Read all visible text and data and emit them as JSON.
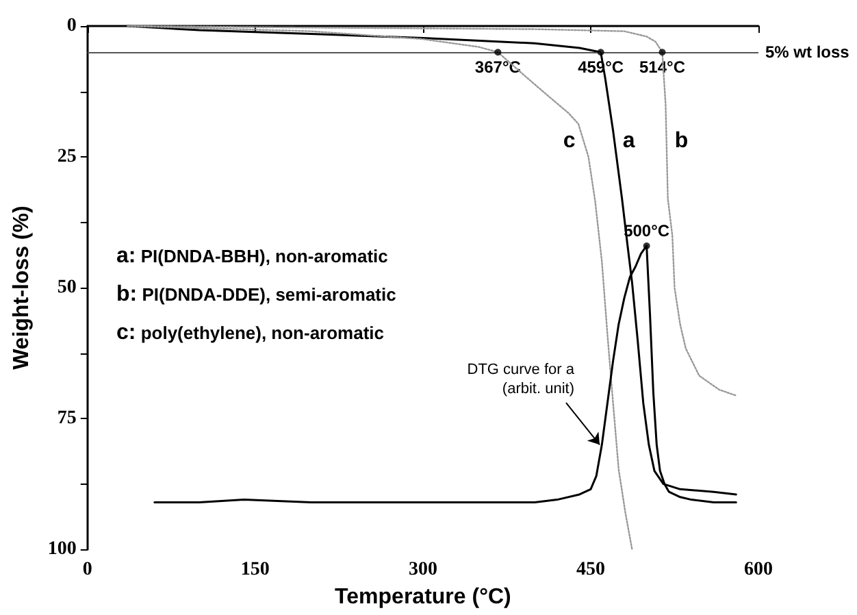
{
  "chart_data": {
    "type": "line",
    "xlabel": "Temperature (°C)",
    "ylabel": "Weight-loss (%)",
    "xlim": [
      0,
      600
    ],
    "xticks": [
      0,
      150,
      300,
      450,
      600
    ],
    "ylim": [
      100,
      0
    ],
    "yticks": [
      0,
      {
        "value": 12.5,
        "label": null
      },
      25,
      {
        "value": 37.5,
        "label": null
      },
      50,
      {
        "value": 62.5,
        "label": null
      },
      75,
      {
        "value": 87.5,
        "label": null
      },
      100
    ],
    "grid": false,
    "marker": "none",
    "series": [
      {
        "name": "a",
        "color": "#000000",
        "line_style": "solid",
        "x": [
          36,
          100,
          200,
          300,
          400,
          440,
          459,
          463,
          470,
          478,
          483,
          487,
          492,
          497,
          502,
          507,
          515,
          530,
          560,
          580
        ],
        "values": [
          0,
          0.8,
          1.5,
          2.3,
          3.3,
          4.2,
          5,
          10,
          20,
          33,
          42,
          49,
          60,
          72,
          80,
          85,
          87.5,
          88.5,
          89,
          89.5
        ]
      },
      {
        "name": "b",
        "color": "#999999",
        "line_style": "dotted",
        "x": [
          36,
          200,
          400,
          480,
          500,
          508,
          514,
          517,
          519,
          523,
          525,
          530,
          535,
          547,
          565,
          580
        ],
        "values": [
          0,
          0.3,
          0.6,
          1,
          2,
          3,
          5,
          15,
          33,
          40,
          50,
          57,
          61.6,
          66.8,
          69.5,
          70.6
        ]
      },
      {
        "name": "c",
        "color": "#999999",
        "line_style": "dotted",
        "x": [
          36,
          200,
          300,
          350,
          367,
          391,
          410,
          430,
          439,
          448,
          454,
          460,
          465,
          470,
          475,
          481,
          487
        ],
        "values": [
          0,
          1,
          2.5,
          4,
          5,
          9.5,
          13,
          16.6,
          18.7,
          25,
          33.5,
          45,
          59,
          72,
          84.7,
          93,
          100
        ]
      },
      {
        "color": "#000000",
        "line_style": "solid",
        "x": [
          60,
          100,
          140,
          200,
          300,
          400,
          420,
          440,
          450,
          455,
          460,
          465,
          470,
          475,
          480,
          485,
          490,
          495,
          500,
          503,
          506,
          509,
          512,
          516,
          520,
          530,
          540,
          560,
          580
        ],
        "values": [
          91,
          91,
          90.5,
          91,
          91,
          91,
          90.5,
          89.5,
          88.5,
          86,
          80,
          72,
          64,
          57,
          52,
          48,
          46,
          43.5,
          42,
          55,
          70,
          80,
          85,
          87.5,
          89,
          90,
          90.5,
          91,
          91
        ]
      },
      {
        "type": "scatter",
        "marker": "circle",
        "color": "#000000",
        "x": [
          367,
          459,
          514,
          500
        ],
        "values": [
          5,
          5,
          5,
          42
        ]
      }
    ],
    "ref_lines": [
      {
        "axis": "y",
        "value": 5,
        "label": "5% wt loss",
        "color": "#555555",
        "line_style": "solid"
      }
    ],
    "annotations": [
      {
        "text": "367°C",
        "x": 367,
        "y": 5
      },
      {
        "text": "459°C",
        "x": 459,
        "y": 5
      },
      {
        "text": "514°C",
        "x": 514,
        "y": 5
      },
      {
        "text": "500°C",
        "x": 500,
        "y": 42
      },
      {
        "text": "DTG curve for a\n(arbit. unit)",
        "x": 458,
        "y": 80
      },
      "a: PI(DNDA-BBH), non-aromatic",
      "b: PI(DNDA-DDE), semi-aromatic",
      "c: poly(ethylene), non-aromatic"
    ]
  }
}
